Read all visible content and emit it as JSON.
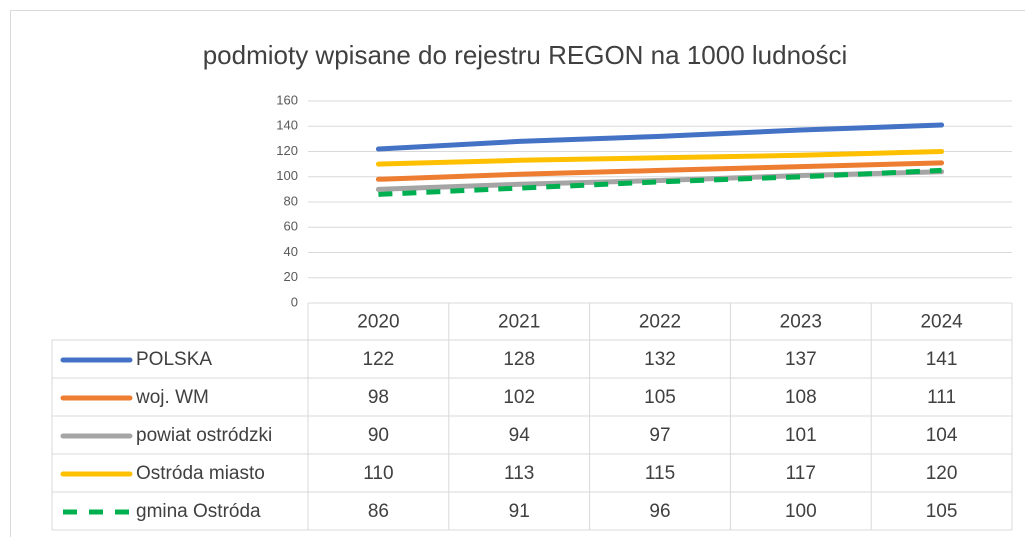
{
  "chart_data": {
    "type": "line",
    "title": "podmioty wpisane do rejestru REGON na 1000 ludności",
    "categories": [
      "2020",
      "2021",
      "2022",
      "2023",
      "2024"
    ],
    "series": [
      {
        "name": "POLSKA",
        "color": "#4472c4",
        "values": [
          122,
          128,
          132,
          137,
          141
        ]
      },
      {
        "name": "woj. WM",
        "color": "#ed7d31",
        "values": [
          98,
          102,
          105,
          108,
          111
        ]
      },
      {
        "name": "powiat ostródzki",
        "color": "#a5a5a5",
        "values": [
          90,
          94,
          97,
          101,
          104
        ]
      },
      {
        "name": "Ostróda miasto",
        "color": "#ffc000",
        "values": [
          110,
          113,
          115,
          117,
          120
        ]
      },
      {
        "name": "gmina Ostróda",
        "color": "#00b050",
        "dashed": true,
        "values": [
          86,
          91,
          96,
          100,
          105
        ]
      }
    ],
    "ylim": [
      0,
      160
    ],
    "yticks": [
      0,
      20,
      40,
      60,
      80,
      100,
      120,
      140,
      160
    ],
    "grid": true,
    "data_table": true
  }
}
